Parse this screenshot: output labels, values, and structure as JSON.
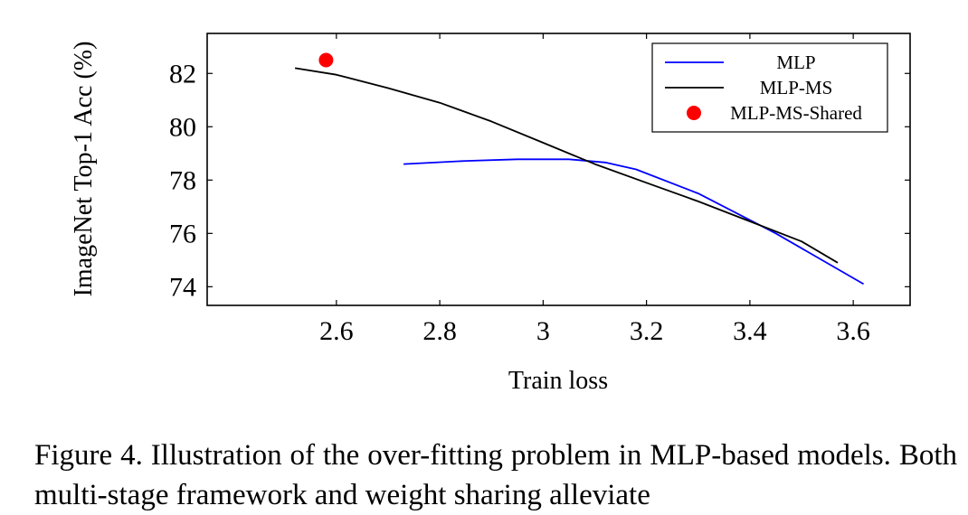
{
  "chart_data": {
    "type": "line",
    "title": "",
    "xlabel": "Train loss",
    "ylabel": "ImageNet Top-1 Acc (%)",
    "xlim": [
      2.35,
      3.71
    ],
    "ylim": [
      73.3,
      83.5
    ],
    "x_ticks": [
      2.6,
      2.8,
      3.0,
      3.2,
      3.4,
      3.6
    ],
    "x_tick_labels": [
      "2.6",
      "2.8",
      "3",
      "3.2",
      "3.4",
      "3.6"
    ],
    "y_ticks": [
      74,
      76,
      78,
      80,
      82
    ],
    "y_tick_labels": [
      "74",
      "76",
      "78",
      "80",
      "82"
    ],
    "legend_position": "top-right",
    "grid": false,
    "series": [
      {
        "name": "MLP",
        "kind": "line",
        "color": "#0000ff",
        "points": [
          [
            2.73,
            78.6
          ],
          [
            2.85,
            78.72
          ],
          [
            2.95,
            78.78
          ],
          [
            3.05,
            78.78
          ],
          [
            3.12,
            78.66
          ],
          [
            3.18,
            78.4
          ],
          [
            3.3,
            77.5
          ],
          [
            3.45,
            76.0
          ],
          [
            3.62,
            74.1
          ]
        ]
      },
      {
        "name": "MLP-MS",
        "kind": "line",
        "color": "#000000",
        "points": [
          [
            2.52,
            82.2
          ],
          [
            2.6,
            81.95
          ],
          [
            2.7,
            81.45
          ],
          [
            2.8,
            80.9
          ],
          [
            2.9,
            80.2
          ],
          [
            3.0,
            79.4
          ],
          [
            3.1,
            78.6
          ],
          [
            3.2,
            77.9
          ],
          [
            3.3,
            77.2
          ],
          [
            3.4,
            76.45
          ],
          [
            3.5,
            75.7
          ],
          [
            3.57,
            74.9
          ]
        ]
      },
      {
        "name": "MLP-MS-Shared",
        "kind": "scatter",
        "color": "#ff0000",
        "points": [
          [
            2.58,
            82.5
          ]
        ]
      }
    ]
  },
  "caption": {
    "text": "Figure 4.  Illustration of the over-fitting problem in MLP-based models. Both multi-stage framework and weight sharing alleviate"
  }
}
